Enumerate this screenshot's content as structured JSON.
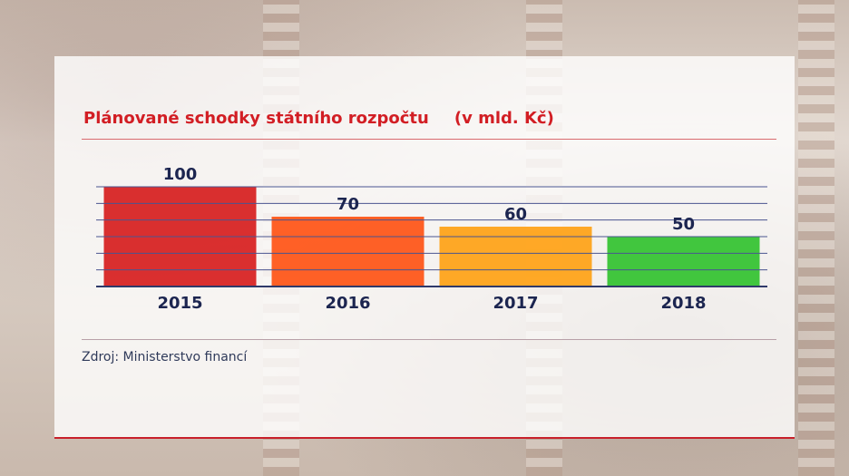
{
  "chart_data": {
    "type": "bar",
    "title": "Plánované schodky státního rozpočtu",
    "subtitle": "(v mld. Kč)",
    "categories": [
      "2015",
      "2016",
      "2017",
      "2018"
    ],
    "values": [
      100,
      70,
      60,
      50
    ],
    "value_labels": [
      "100",
      "70",
      "60",
      "50"
    ],
    "colors": [
      "#d61a1a",
      "#ff5010",
      "#ffa010",
      "#2ec12a"
    ],
    "ylim": [
      0,
      100
    ],
    "grid": true,
    "legend": "none"
  },
  "source": "Zdroj: Ministerstvo financí"
}
